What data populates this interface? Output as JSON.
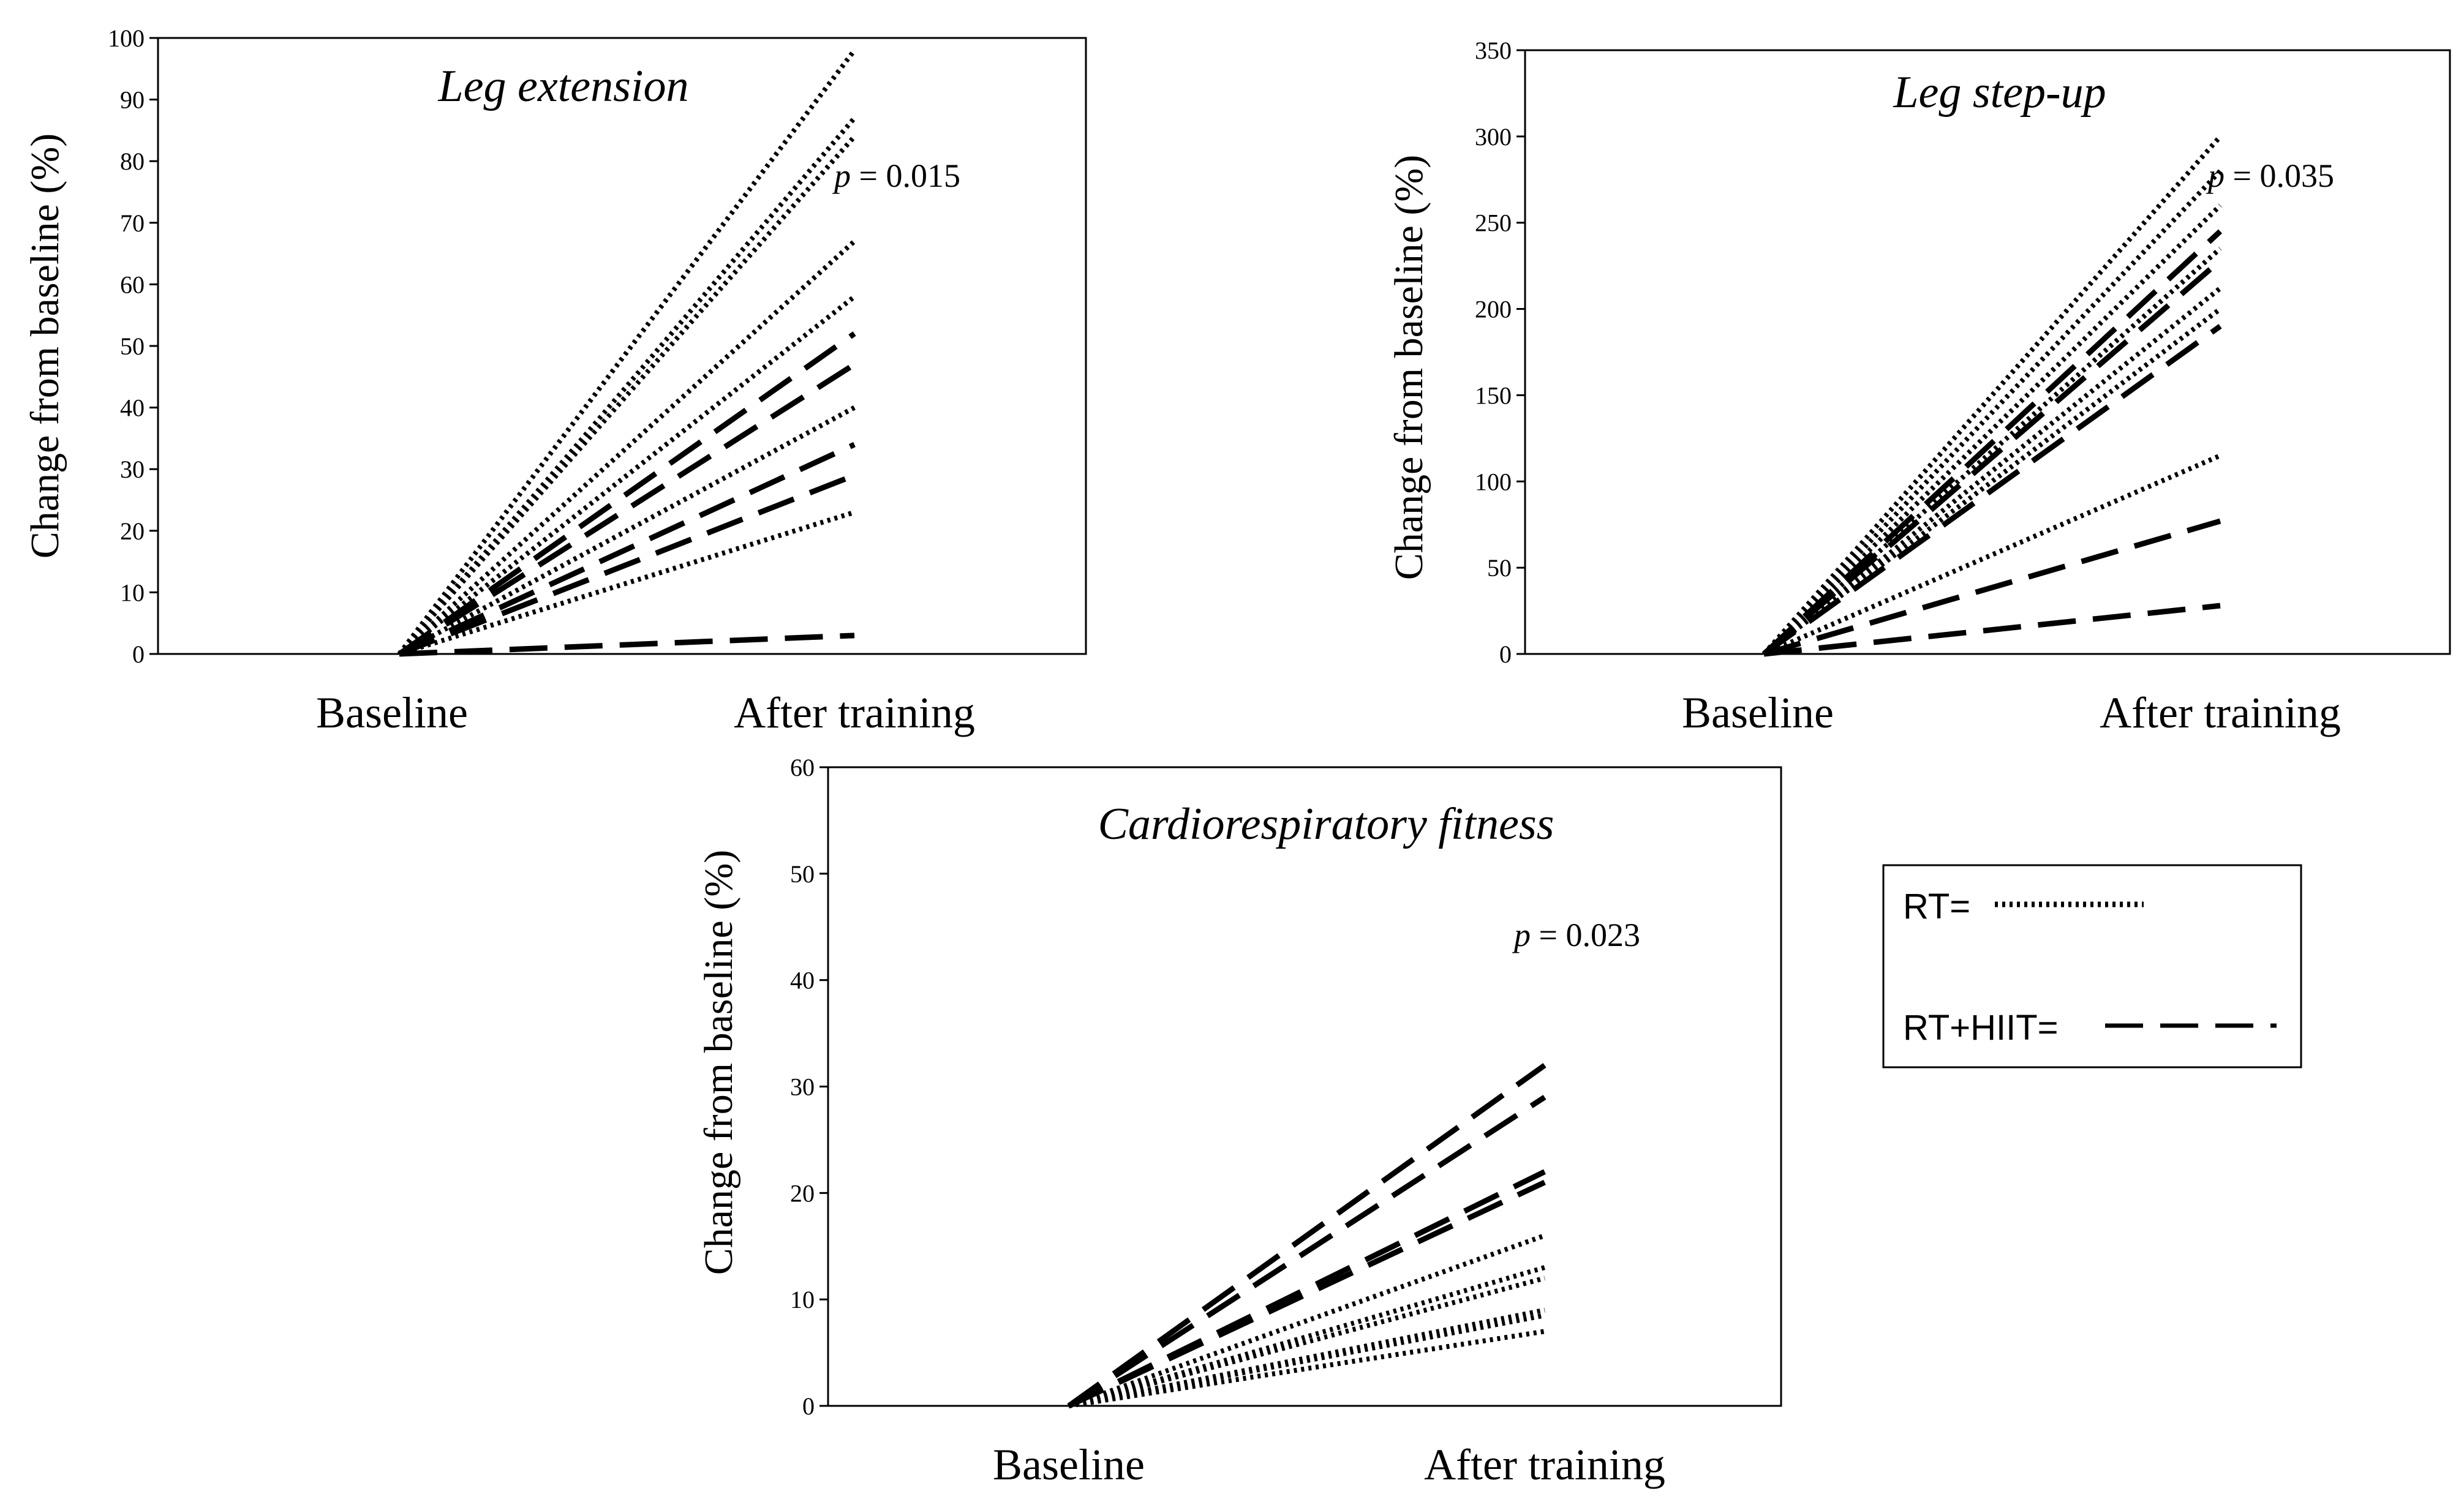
{
  "legend": {
    "items": [
      {
        "label": "RT=",
        "style": "dotted"
      },
      {
        "label": "RT+HIIT=",
        "style": "dashed"
      }
    ]
  },
  "chart_data": [
    {
      "type": "line",
      "title": "Leg extension",
      "ylabel": "Change from baseline (%)",
      "categories": [
        "Baseline",
        "After training"
      ],
      "ylim": [
        0,
        100
      ],
      "yticks": [
        0,
        10,
        20,
        30,
        40,
        50,
        60,
        70,
        80,
        90,
        100
      ],
      "p_prefix": "p",
      "p_value": "= 0.015",
      "series": [
        {
          "name": "RT",
          "style": "dotted",
          "values": [
            0,
            98
          ]
        },
        {
          "name": "RT",
          "style": "dotted",
          "values": [
            0,
            87
          ]
        },
        {
          "name": "RT",
          "style": "dotted",
          "values": [
            0,
            84
          ]
        },
        {
          "name": "RT",
          "style": "dotted",
          "values": [
            0,
            67
          ]
        },
        {
          "name": "RT",
          "style": "dotted",
          "values": [
            0,
            58
          ]
        },
        {
          "name": "RT",
          "style": "dotted",
          "values": [
            0,
            40
          ]
        },
        {
          "name": "RT",
          "style": "dotted",
          "values": [
            0,
            23
          ]
        },
        {
          "name": "RT+HIIT",
          "style": "dashed",
          "values": [
            0,
            52
          ]
        },
        {
          "name": "RT+HIIT",
          "style": "dashed",
          "values": [
            0,
            47
          ]
        },
        {
          "name": "RT+HIIT",
          "style": "dashed",
          "values": [
            0,
            34
          ]
        },
        {
          "name": "RT+HIIT",
          "style": "dashed",
          "values": [
            0,
            29
          ]
        },
        {
          "name": "RT+HIIT",
          "style": "dashed",
          "values": [
            0,
            3
          ]
        }
      ]
    },
    {
      "type": "line",
      "title": "Leg step-up",
      "ylabel": "Change from baseline (%)",
      "categories": [
        "Baseline",
        "After training"
      ],
      "ylim": [
        0,
        350
      ],
      "yticks": [
        0,
        50,
        100,
        150,
        200,
        250,
        300,
        350
      ],
      "p_prefix": "p",
      "p_value": "= 0.035",
      "series": [
        {
          "name": "RT",
          "style": "dotted",
          "values": [
            0,
            300
          ]
        },
        {
          "name": "RT",
          "style": "dotted",
          "values": [
            0,
            280
          ]
        },
        {
          "name": "RT",
          "style": "dotted",
          "values": [
            0,
            260
          ]
        },
        {
          "name": "RT",
          "style": "dotted",
          "values": [
            0,
            235
          ]
        },
        {
          "name": "RT",
          "style": "dotted",
          "values": [
            0,
            212
          ]
        },
        {
          "name": "RT",
          "style": "dotted",
          "values": [
            0,
            200
          ]
        },
        {
          "name": "RT",
          "style": "dotted",
          "values": [
            0,
            115
          ]
        },
        {
          "name": "RT+HIIT",
          "style": "dashed",
          "values": [
            0,
            245
          ]
        },
        {
          "name": "RT+HIIT",
          "style": "dashed",
          "values": [
            0,
            228
          ]
        },
        {
          "name": "RT+HIIT",
          "style": "dashed",
          "values": [
            0,
            190
          ]
        },
        {
          "name": "RT+HIIT",
          "style": "dashed",
          "values": [
            0,
            77
          ]
        },
        {
          "name": "RT+HIIT",
          "style": "dashed",
          "values": [
            0,
            28
          ]
        }
      ]
    },
    {
      "type": "line",
      "title": "Cardiorespiratory fitness",
      "ylabel": "Change from baseline (%)",
      "categories": [
        "Baseline",
        "After training"
      ],
      "ylim": [
        0,
        60
      ],
      "yticks": [
        0,
        10,
        20,
        30,
        40,
        50,
        60
      ],
      "p_prefix": "p",
      "p_value": "= 0.023",
      "series": [
        {
          "name": "RT",
          "style": "dotted",
          "values": [
            0,
            16
          ]
        },
        {
          "name": "RT",
          "style": "dotted",
          "values": [
            0,
            13
          ]
        },
        {
          "name": "RT",
          "style": "dotted",
          "values": [
            0,
            12
          ]
        },
        {
          "name": "RT",
          "style": "dotted",
          "values": [
            0,
            9
          ]
        },
        {
          "name": "RT",
          "style": "dotted",
          "values": [
            0,
            8.5
          ]
        },
        {
          "name": "RT",
          "style": "dotted",
          "values": [
            0,
            7
          ]
        },
        {
          "name": "RT+HIIT",
          "style": "dashed",
          "values": [
            0,
            32
          ]
        },
        {
          "name": "RT+HIIT",
          "style": "dashed",
          "values": [
            0,
            29
          ]
        },
        {
          "name": "RT+HIIT",
          "style": "dashed",
          "values": [
            0,
            22
          ]
        },
        {
          "name": "RT+HIIT",
          "style": "dashed",
          "values": [
            0,
            21
          ]
        }
      ]
    }
  ]
}
